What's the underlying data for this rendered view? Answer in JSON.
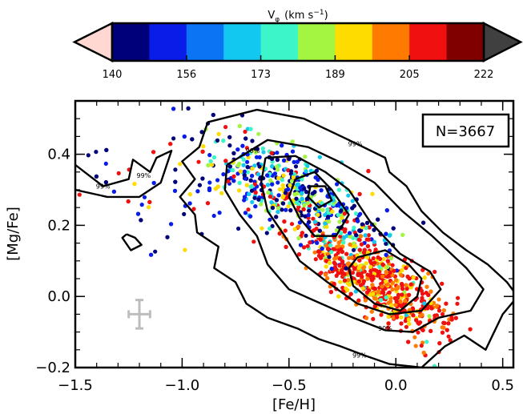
{
  "chart_data": {
    "type": "scatter",
    "xlabel": "[Fe/H]",
    "ylabel": "[Mg/Fe]",
    "xlim": [
      -1.5,
      0.55
    ],
    "ylim": [
      -0.2,
      0.55
    ],
    "xticks": [
      -1.5,
      -1.0,
      -0.5,
      0.0,
      0.5
    ],
    "xtick_labels": [
      "−1.5",
      "−1.0",
      "−0.5",
      "0.0",
      "0.5"
    ],
    "yticks": [
      -0.2,
      0.0,
      0.2,
      0.4
    ],
    "ytick_labels": [
      "−0.2",
      "0.0",
      "0.2",
      "0.4"
    ],
    "annotation": "N=3667",
    "n_points": 3667,
    "error_bar": {
      "x": -1.2,
      "y": -0.05,
      "x_err": 0.05,
      "y_err": 0.04,
      "color": "#bdbdbd"
    },
    "colorbar": {
      "label_prefix": "V",
      "label_subscript": "φ",
      "label_units": "(km s",
      "label_exponent": "−1",
      "label_close": ")",
      "ticks": [
        "140",
        "156",
        "173",
        "189",
        "205",
        "222"
      ],
      "range": [
        140,
        222
      ],
      "colors": [
        "#00007a",
        "#0a1de8",
        "#0a74f5",
        "#12c8f0",
        "#3cf5c8",
        "#a3f542",
        "#ffdc00",
        "#ff7a00",
        "#f01010",
        "#800000"
      ],
      "underflow_color": "#ffd8d2",
      "overflow_color": "#404040"
    },
    "contour_labels": [
      {
        "text": "99%",
        "x": -1.18,
        "y": 0.34
      },
      {
        "text": "99%",
        "x": -1.37,
        "y": 0.31
      },
      {
        "text": "99%",
        "x": -0.19,
        "y": 0.43
      },
      {
        "text": "90%",
        "x": -0.67,
        "y": 0.41
      },
      {
        "text": "90%",
        "x": -0.05,
        "y": -0.09
      },
      {
        "text": "99%",
        "x": -0.17,
        "y": -0.165
      }
    ],
    "contours": [
      [
        [
          -0.88,
          0.49
        ],
        [
          -0.65,
          0.525
        ],
        [
          -0.43,
          0.5
        ],
        [
          -0.22,
          0.44
        ],
        [
          -0.05,
          0.39
        ],
        [
          -0.03,
          0.35
        ],
        [
          0.05,
          0.31
        ],
        [
          0.12,
          0.24
        ],
        [
          0.22,
          0.18
        ],
        [
          0.33,
          0.13
        ],
        [
          0.43,
          0.09
        ],
        [
          0.52,
          0.04
        ],
        [
          0.57,
          0.0
        ],
        [
          0.5,
          -0.05
        ],
        [
          0.42,
          -0.15
        ],
        [
          0.32,
          -0.11
        ],
        [
          0.23,
          -0.14
        ],
        [
          0.12,
          -0.2
        ],
        [
          -0.03,
          -0.19
        ],
        [
          -0.15,
          -0.165
        ],
        [
          -0.26,
          -0.14
        ],
        [
          -0.36,
          -0.12
        ],
        [
          -0.46,
          -0.09
        ],
        [
          -0.6,
          -0.06
        ],
        [
          -0.7,
          -0.02
        ],
        [
          -0.75,
          0.04
        ],
        [
          -0.85,
          0.08
        ],
        [
          -0.83,
          0.14
        ],
        [
          -0.93,
          0.18
        ],
        [
          -0.94,
          0.23
        ],
        [
          -1.01,
          0.28
        ],
        [
          -0.94,
          0.33
        ],
        [
          -1.0,
          0.38
        ],
        [
          -0.92,
          0.42
        ],
        [
          -0.88,
          0.49
        ]
      ],
      [
        [
          -1.5,
          0.37
        ],
        [
          -1.37,
          0.31
        ],
        [
          -1.25,
          0.33
        ],
        [
          -1.23,
          0.385
        ],
        [
          -1.15,
          0.35
        ],
        [
          -1.12,
          0.39
        ],
        [
          -1.05,
          0.41
        ],
        [
          -1.1,
          0.32
        ],
        [
          -1.2,
          0.28
        ],
        [
          -1.35,
          0.28
        ],
        [
          -1.5,
          0.3
        ]
      ],
      [
        [
          -1.26,
          0.175
        ],
        [
          -1.22,
          0.165
        ],
        [
          -1.19,
          0.145
        ],
        [
          -1.24,
          0.13
        ],
        [
          -1.28,
          0.165
        ],
        [
          -1.26,
          0.175
        ]
      ],
      [
        [
          -0.79,
          0.37
        ],
        [
          -0.6,
          0.44
        ],
        [
          -0.41,
          0.42
        ],
        [
          -0.27,
          0.38
        ],
        [
          -0.1,
          0.32
        ],
        [
          0.03,
          0.24
        ],
        [
          0.17,
          0.17
        ],
        [
          0.33,
          0.08
        ],
        [
          0.41,
          0.02
        ],
        [
          0.35,
          -0.04
        ],
        [
          0.2,
          -0.06
        ],
        [
          0.08,
          -0.1
        ],
        [
          -0.05,
          -0.095
        ],
        [
          -0.2,
          -0.06
        ],
        [
          -0.35,
          -0.02
        ],
        [
          -0.5,
          0.02
        ],
        [
          -0.6,
          0.09
        ],
        [
          -0.65,
          0.17
        ],
        [
          -0.73,
          0.23
        ],
        [
          -0.8,
          0.3
        ],
        [
          -0.79,
          0.37
        ]
      ],
      [
        [
          -0.61,
          0.39
        ],
        [
          -0.47,
          0.395
        ],
        [
          -0.33,
          0.35
        ],
        [
          -0.22,
          0.3
        ],
        [
          -0.12,
          0.21
        ],
        [
          0.02,
          0.12
        ],
        [
          0.16,
          0.07
        ],
        [
          0.21,
          0.02
        ],
        [
          0.12,
          -0.04
        ],
        [
          -0.03,
          -0.05
        ],
        [
          -0.18,
          -0.02
        ],
        [
          -0.32,
          0.04
        ],
        [
          -0.45,
          0.1
        ],
        [
          -0.52,
          0.17
        ],
        [
          -0.6,
          0.24
        ],
        [
          -0.63,
          0.32
        ],
        [
          -0.61,
          0.39
        ]
      ],
      [
        [
          -0.47,
          0.33
        ],
        [
          -0.38,
          0.35
        ],
        [
          -0.3,
          0.3
        ],
        [
          -0.22,
          0.23
        ],
        [
          -0.28,
          0.17
        ],
        [
          -0.38,
          0.17
        ],
        [
          -0.45,
          0.22
        ],
        [
          -0.5,
          0.28
        ],
        [
          -0.47,
          0.33
        ]
      ],
      [
        [
          -0.4,
          0.31
        ],
        [
          -0.33,
          0.31
        ],
        [
          -0.3,
          0.27
        ],
        [
          -0.36,
          0.25
        ],
        [
          -0.41,
          0.28
        ],
        [
          -0.4,
          0.31
        ]
      ],
      [
        [
          -0.18,
          0.11
        ],
        [
          -0.05,
          0.13
        ],
        [
          0.06,
          0.09
        ],
        [
          0.12,
          0.05
        ],
        [
          0.1,
          0.0
        ],
        [
          0.02,
          -0.04
        ],
        [
          -0.1,
          -0.02
        ],
        [
          -0.2,
          0.03
        ],
        [
          -0.22,
          0.08
        ],
        [
          -0.18,
          0.11
        ]
      ]
    ]
  }
}
